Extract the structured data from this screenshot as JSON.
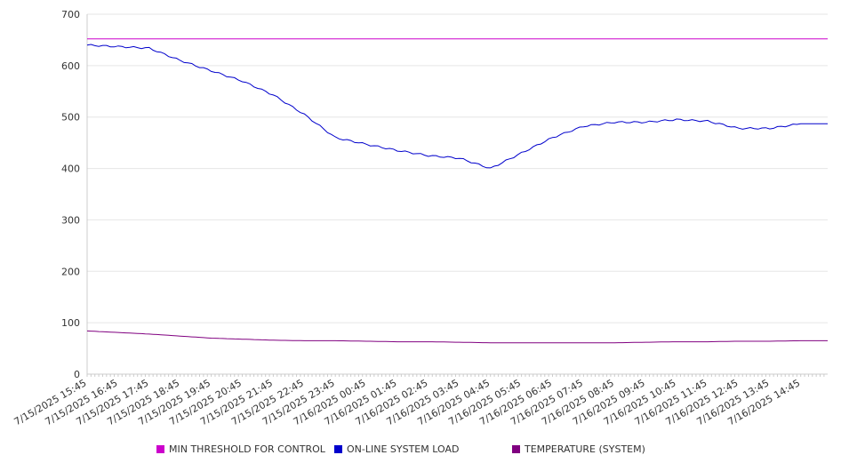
{
  "chart_data": {
    "type": "line",
    "title": "",
    "xlabel": "",
    "ylabel": "",
    "ylim": [
      0,
      700
    ],
    "yticks": [
      0,
      100,
      200,
      300,
      400,
      500,
      600,
      700
    ],
    "grid": true,
    "legend_placement": "bottom",
    "x": [
      "7/15/2025 15:45",
      "7/15/2025 16:45",
      "7/15/2025 17:45",
      "7/15/2025 18:45",
      "7/15/2025 19:45",
      "7/15/2025 20:45",
      "7/15/2025 21:45",
      "7/15/2025 22:45",
      "7/15/2025 23:45",
      "7/16/2025 00:45",
      "7/16/2025 01:45",
      "7/16/2025 02:45",
      "7/16/2025 03:45",
      "7/16/2025 04:45",
      "7/16/2025 05:45",
      "7/16/2025 06:45",
      "7/16/2025 07:45",
      "7/16/2025 08:45",
      "7/16/2025 09:45",
      "7/16/2025 10:45",
      "7/16/2025 11:45",
      "7/16/2025 12:45",
      "7/16/2025 13:45",
      "7/16/2025 14:45"
    ],
    "series": [
      {
        "name": "MIN THRESHOLD FOR CONTROL",
        "color": "#cc00cc",
        "values": [
          652,
          652,
          652,
          652,
          652,
          652,
          652,
          652,
          652,
          652,
          652,
          652,
          652,
          652,
          652,
          652,
          652,
          652,
          652,
          652,
          652,
          652,
          652,
          652
        ]
      },
      {
        "name": "ON-LINE SYSTEM LOAD",
        "color": "#0000cc",
        "values": [
          640,
          637,
          634,
          610,
          590,
          570,
          543,
          505,
          460,
          447,
          435,
          425,
          420,
          400,
          430,
          460,
          482,
          490,
          490,
          495,
          492,
          478,
          478,
          487
        ]
      },
      {
        "name": "TEMPERATURE (SYSTEM)",
        "color": "#800080",
        "values": [
          84,
          81,
          78,
          74,
          70,
          68,
          66,
          65,
          65,
          64,
          63,
          63,
          62,
          61,
          61,
          61,
          61,
          61,
          62,
          63,
          63,
          64,
          64,
          65
        ]
      }
    ]
  }
}
